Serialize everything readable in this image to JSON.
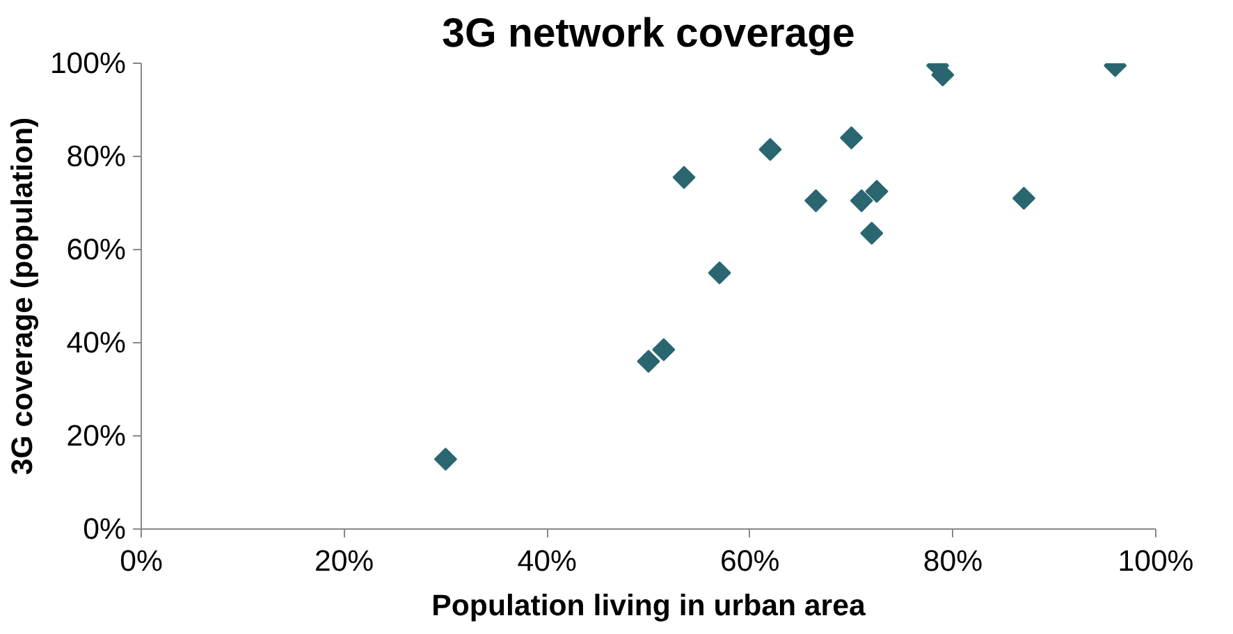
{
  "chart_data": {
    "type": "scatter",
    "title": "3G network coverage",
    "xlabel": "Population living in urban area",
    "ylabel": "3G coverage (population)",
    "x": [
      30,
      50,
      51.5,
      53.5,
      57,
      62,
      66.5,
      70,
      71,
      72.5,
      72,
      78.5,
      79,
      87,
      96
    ],
    "series": [
      {
        "color": "#2a6670",
        "values": [
          15,
          36,
          38.5,
          75.5,
          55,
          81.5,
          70.5,
          84,
          70.5,
          72.5,
          63.5,
          99.5,
          97.5,
          71,
          99.5
        ]
      }
    ],
    "marker": "diamond",
    "grid": false,
    "xlim": [
      0,
      100
    ],
    "ylim": [
      0,
      100
    ],
    "xticks": [
      {
        "value": 0,
        "label": "0%"
      },
      {
        "value": 20,
        "label": "20%"
      },
      {
        "value": 40,
        "label": "40%"
      },
      {
        "value": 60,
        "label": "60%"
      },
      {
        "value": 80,
        "label": "80%"
      },
      {
        "value": 100,
        "label": "100%"
      }
    ],
    "yticks": [
      {
        "value": 0,
        "label": "0%"
      },
      {
        "value": 20,
        "label": "20%"
      },
      {
        "value": 40,
        "label": "40%"
      },
      {
        "value": 60,
        "label": "60%"
      },
      {
        "value": 80,
        "label": "80%"
      },
      {
        "value": 100,
        "label": "100%"
      }
    ]
  }
}
